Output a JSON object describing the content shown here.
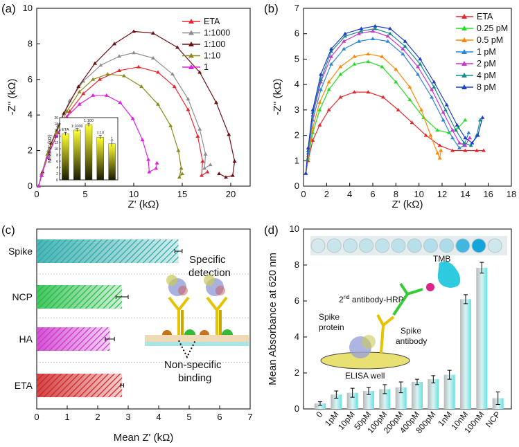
{
  "chart_data": [
    {
      "panel": "(a)",
      "type": "line",
      "xlabel": "Z' (kΩ)",
      "ylabel": "-Z'' (kΩ)",
      "xlim": [
        0,
        22
      ],
      "ylim": [
        0,
        10
      ],
      "xticks": [
        "0",
        "5",
        "10",
        "15",
        "20"
      ],
      "yticks": [
        "0",
        "2",
        "4",
        "6",
        "8",
        "10"
      ],
      "legend": "top-right",
      "series": [
        {
          "name": "ETA",
          "color": "#e8262d",
          "points": [
            [
              0.2,
              0
            ],
            [
              0.5,
              0.6
            ],
            [
              1.2,
              1.8
            ],
            [
              2.2,
              3.0
            ],
            [
              3.4,
              4.2
            ],
            [
              4.8,
              5.2
            ],
            [
              6.5,
              6.0
            ],
            [
              8.5,
              6.5
            ],
            [
              10.5,
              6.7
            ],
            [
              12.5,
              6.4
            ],
            [
              14.2,
              5.6
            ],
            [
              15.6,
              4.3
            ],
            [
              16.6,
              2.8
            ],
            [
              17.1,
              1.4
            ],
            [
              17.0,
              0.6
            ],
            [
              17.6,
              0.8
            ]
          ]
        },
        {
          "name": "1:1000",
          "color": "#8c8c8c",
          "points": [
            [
              0.2,
              0
            ],
            [
              0.5,
              0.7
            ],
            [
              1.2,
              2.0
            ],
            [
              2.2,
              3.4
            ],
            [
              3.4,
              4.8
            ],
            [
              4.8,
              5.9
            ],
            [
              6.6,
              6.8
            ],
            [
              8.5,
              7.3
            ],
            [
              10.0,
              7.5
            ],
            [
              12.0,
              7.2
            ],
            [
              14.0,
              6.3
            ],
            [
              15.6,
              4.9
            ],
            [
              16.8,
              3.2
            ],
            [
              17.4,
              1.8
            ],
            [
              17.3,
              1.0
            ],
            [
              17.9,
              1.2
            ]
          ]
        },
        {
          "name": "1:100",
          "color": "#6b0f12",
          "points": [
            [
              0.2,
              0
            ],
            [
              0.6,
              0.8
            ],
            [
              1.5,
              2.4
            ],
            [
              2.8,
              4.1
            ],
            [
              4.3,
              5.6
            ],
            [
              6.0,
              6.9
            ],
            [
              8.0,
              8.0
            ],
            [
              10.0,
              8.7
            ],
            [
              12.0,
              8.6
            ],
            [
              14.5,
              7.8
            ],
            [
              16.8,
              6.4
            ],
            [
              18.5,
              4.7
            ],
            [
              19.8,
              2.9
            ],
            [
              20.4,
              1.4
            ],
            [
              20.2,
              0.6
            ],
            [
              19.5,
              0.5
            ],
            [
              18.8,
              0.7
            ]
          ]
        },
        {
          "name": "1:10",
          "color": "#8a8a1f",
          "points": [
            [
              0.2,
              0
            ],
            [
              0.5,
              0.6
            ],
            [
              1.1,
              1.8
            ],
            [
              2.0,
              3.0
            ],
            [
              3.1,
              4.2
            ],
            [
              4.4,
              5.3
            ],
            [
              5.8,
              6.0
            ],
            [
              7.3,
              6.3
            ],
            [
              9.0,
              6.2
            ],
            [
              10.8,
              5.6
            ],
            [
              12.5,
              4.6
            ],
            [
              13.8,
              3.4
            ],
            [
              14.6,
              2.0
            ],
            [
              14.9,
              1.0
            ],
            [
              14.7,
              0.5
            ],
            [
              15.0,
              0.7
            ]
          ]
        },
        {
          "name": "1",
          "color": "#e020e0",
          "points": [
            [
              0.2,
              0
            ],
            [
              0.5,
              0.6
            ],
            [
              1.1,
              1.6
            ],
            [
              2.0,
              2.8
            ],
            [
              3.1,
              3.9
            ],
            [
              4.4,
              4.6
            ],
            [
              5.8,
              5.1
            ],
            [
              7.2,
              5.1
            ],
            [
              8.6,
              4.7
            ],
            [
              9.9,
              3.8
            ],
            [
              10.9,
              2.6
            ],
            [
              11.5,
              1.5
            ],
            [
              11.6,
              0.8
            ],
            [
              12.3,
              1.0
            ],
            [
              12.4,
              1.3
            ]
          ]
        }
      ],
      "inset": {
        "type": "bar",
        "ylabel": "Mean Z' (kΩ)",
        "ylim": [
          0,
          20
        ],
        "yticks": [
          "0",
          "2",
          "4",
          "6",
          "8",
          "10",
          "12",
          "14",
          "16",
          "18",
          "20"
        ],
        "categories": [
          "ETA",
          "1:1000",
          "1:100",
          "1:10",
          "1"
        ],
        "values": [
          14.8,
          16.0,
          17.7,
          13.7,
          11.6
        ],
        "errors": [
          0.5,
          0.5,
          0.5,
          0.6,
          0.9
        ]
      }
    },
    {
      "panel": "(b)",
      "type": "line",
      "xlabel": "Z' (kΩ)",
      "ylabel": "-Z'' (kΩ)",
      "xlim": [
        0,
        18
      ],
      "ylim": [
        0,
        7
      ],
      "xticks": [
        "0",
        "2",
        "4",
        "6",
        "8",
        "10",
        "12",
        "14",
        "16",
        "18"
      ],
      "yticks": [
        "0",
        "1",
        "2",
        "3",
        "4",
        "5",
        "6",
        "7"
      ],
      "legend": "top-right",
      "series": [
        {
          "name": "ETA",
          "color": "#e8262d",
          "points": [
            [
              0.2,
              0.5
            ],
            [
              0.4,
              1.0
            ],
            [
              0.8,
              1.8
            ],
            [
              1.4,
              2.4
            ],
            [
              2.2,
              3.0
            ],
            [
              3.2,
              3.5
            ],
            [
              4.4,
              3.7
            ],
            [
              5.6,
              3.7
            ],
            [
              6.9,
              3.5
            ],
            [
              8.2,
              3.0
            ],
            [
              9.4,
              2.5
            ],
            [
              10.6,
              2.0
            ],
            [
              11.8,
              1.6
            ],
            [
              12.9,
              1.4
            ],
            [
              14.0,
              1.4
            ],
            [
              15.0,
              1.4
            ],
            [
              15.6,
              1.4
            ]
          ]
        },
        {
          "name": "0.25 pM",
          "color": "#22dd22",
          "points": [
            [
              0.2,
              0.5
            ],
            [
              0.4,
              1.1
            ],
            [
              0.8,
              2.1
            ],
            [
              1.4,
              3.0
            ],
            [
              2.2,
              3.8
            ],
            [
              3.2,
              4.4
            ],
            [
              4.4,
              4.8
            ],
            [
              5.6,
              4.9
            ],
            [
              6.8,
              4.7
            ],
            [
              8.0,
              4.1
            ],
            [
              9.2,
              3.4
            ],
            [
              10.4,
              2.7
            ],
            [
              11.6,
              2.2
            ],
            [
              12.6,
              2.1
            ],
            [
              13.4,
              2.3
            ],
            [
              14.0,
              2.6
            ]
          ]
        },
        {
          "name": "0.5 pM",
          "color": "#ff8800",
          "points": [
            [
              0.2,
              0.5
            ],
            [
              0.4,
              1.2
            ],
            [
              0.8,
              2.3
            ],
            [
              1.4,
              3.3
            ],
            [
              2.2,
              4.1
            ],
            [
              3.2,
              4.7
            ],
            [
              4.4,
              5.1
            ],
            [
              5.6,
              5.2
            ],
            [
              6.8,
              5.1
            ],
            [
              8.0,
              4.6
            ],
            [
              9.2,
              3.9
            ],
            [
              10.2,
              3.0
            ],
            [
              11.0,
              2.0
            ],
            [
              11.6,
              1.3
            ],
            [
              11.8,
              1.1
            ],
            [
              11.9,
              1.4
            ]
          ]
        },
        {
          "name": "1 pM",
          "color": "#2a86d8",
          "points": [
            [
              0.2,
              0.5
            ],
            [
              0.4,
              1.3
            ],
            [
              0.8,
              2.6
            ],
            [
              1.5,
              3.8
            ],
            [
              2.4,
              4.8
            ],
            [
              3.5,
              5.4
            ],
            [
              4.8,
              5.7
            ],
            [
              6.0,
              5.8
            ],
            [
              7.3,
              5.7
            ],
            [
              8.6,
              5.2
            ],
            [
              9.9,
              4.4
            ],
            [
              11.1,
              3.5
            ],
            [
              12.1,
              2.6
            ],
            [
              12.9,
              1.9
            ],
            [
              13.5,
              1.5
            ],
            [
              13.9,
              1.6
            ],
            [
              14.3,
              2.1
            ]
          ]
        },
        {
          "name": "2 pM",
          "color": "#cc33cc",
          "points": [
            [
              0.2,
              0.5
            ],
            [
              0.4,
              1.4
            ],
            [
              0.8,
              2.8
            ],
            [
              1.5,
              4.1
            ],
            [
              2.4,
              5.1
            ],
            [
              3.5,
              5.7
            ],
            [
              4.8,
              6.0
            ],
            [
              6.0,
              6.1
            ],
            [
              7.3,
              5.9
            ],
            [
              8.6,
              5.4
            ],
            [
              9.9,
              4.7
            ],
            [
              11.1,
              3.8
            ],
            [
              12.1,
              2.9
            ],
            [
              12.9,
              2.2
            ],
            [
              13.5,
              1.7
            ],
            [
              14.0,
              1.6
            ],
            [
              14.4,
              1.9
            ]
          ]
        },
        {
          "name": "4 pM",
          "color": "#178a8a",
          "points": [
            [
              0.2,
              0.5
            ],
            [
              0.4,
              1.4
            ],
            [
              0.8,
              2.9
            ],
            [
              1.5,
              4.2
            ],
            [
              2.4,
              5.3
            ],
            [
              3.6,
              5.9
            ],
            [
              5.0,
              6.1
            ],
            [
              6.2,
              6.2
            ],
            [
              7.5,
              6.0
            ],
            [
              8.8,
              5.5
            ],
            [
              10.1,
              4.8
            ],
            [
              11.3,
              3.9
            ],
            [
              12.3,
              3.0
            ],
            [
              13.2,
              2.2
            ],
            [
              13.9,
              1.7
            ],
            [
              14.5,
              1.6
            ],
            [
              15.0,
              2.0
            ],
            [
              15.3,
              2.6
            ]
          ]
        },
        {
          "name": "8 pM",
          "color": "#1a3fc8",
          "points": [
            [
              0.2,
              0.5
            ],
            [
              0.4,
              1.5
            ],
            [
              0.8,
              3.0
            ],
            [
              1.5,
              4.4
            ],
            [
              2.4,
              5.4
            ],
            [
              3.6,
              6.0
            ],
            [
              5.0,
              6.2
            ],
            [
              6.2,
              6.3
            ],
            [
              7.5,
              6.2
            ],
            [
              8.8,
              5.7
            ],
            [
              10.1,
              5.0
            ],
            [
              11.3,
              4.1
            ],
            [
              12.4,
              3.2
            ],
            [
              13.3,
              2.4
            ],
            [
              14.0,
              1.9
            ],
            [
              14.6,
              1.7
            ],
            [
              15.1,
              2.0
            ],
            [
              15.5,
              2.7
            ]
          ]
        }
      ]
    },
    {
      "panel": "(c)",
      "type": "bar",
      "orientation": "horizontal",
      "xlabel": "Mean Z' (kΩ)",
      "xlim": [
        0,
        7
      ],
      "xticks": [
        "0",
        "1",
        "2",
        "3",
        "4",
        "5",
        "6",
        "7"
      ],
      "categories": [
        "Spike",
        "NCP",
        "HA",
        "ETA"
      ],
      "values": [
        4.65,
        2.8,
        2.4,
        2.8
      ],
      "errors": [
        0.12,
        0.2,
        0.15,
        0.05
      ],
      "colors": [
        "#2aa8a8",
        "#22bb44",
        "#cc33cc",
        "#cc2222"
      ],
      "annotations": [
        "Specific",
        "detection",
        "Non-specific",
        "binding"
      ]
    },
    {
      "panel": "(d)",
      "type": "bar",
      "ylabel": "Mean Absorbance at 620 nm",
      "ylim": [
        0,
        10
      ],
      "yticks": [
        "0",
        "2",
        "4",
        "6",
        "8",
        "10"
      ],
      "categories": [
        "0",
        "1pM",
        "10pM",
        "50pM",
        "100pM",
        "200pM",
        "400pM",
        "800pM",
        "1nM",
        "10nM",
        "100nM",
        "NCP"
      ],
      "values": [
        0.3,
        0.8,
        0.9,
        1.0,
        1.1,
        1.2,
        1.5,
        1.65,
        1.9,
        6.1,
        7.85,
        0.6
      ],
      "errors": [
        0.1,
        0.2,
        0.25,
        0.2,
        0.25,
        0.3,
        0.15,
        0.2,
        0.25,
        0.25,
        0.3,
        0.35
      ],
      "annotations": [
        "TMB",
        "2nd antibody-HRP",
        "Spike protein",
        "Spike antibody",
        "ELISA well"
      ]
    }
  ],
  "labels": {
    "a_panel": "(a)",
    "b_panel": "(b)",
    "c_panel": "(c)",
    "d_panel": "(d)",
    "a_xlabel": "Z' (kΩ)",
    "a_ylabel": "-Z'' (kΩ)",
    "b_xlabel": "Z' (kΩ)",
    "b_ylabel": "-Z'' (kΩ)",
    "c_xlabel": "Mean Z' (kΩ)",
    "d_ylabel": "Mean Absorbance at 620 nm",
    "inset_ylabel": "Mean Z' (kΩ)",
    "specific": "Specific",
    "detection": "detection",
    "nonspecific": "Non-specific",
    "binding": "binding",
    "tmb": "TMB",
    "second_ab_prefix": "2",
    "second_ab_sup": "nd",
    "second_ab_rest": " antibody-HRP",
    "spike_protein_1": "Spike",
    "spike_protein_2": "protein",
    "spike_antibody_1": "Spike",
    "spike_antibody_2": "antibody",
    "elisa_well": "ELISA well"
  }
}
